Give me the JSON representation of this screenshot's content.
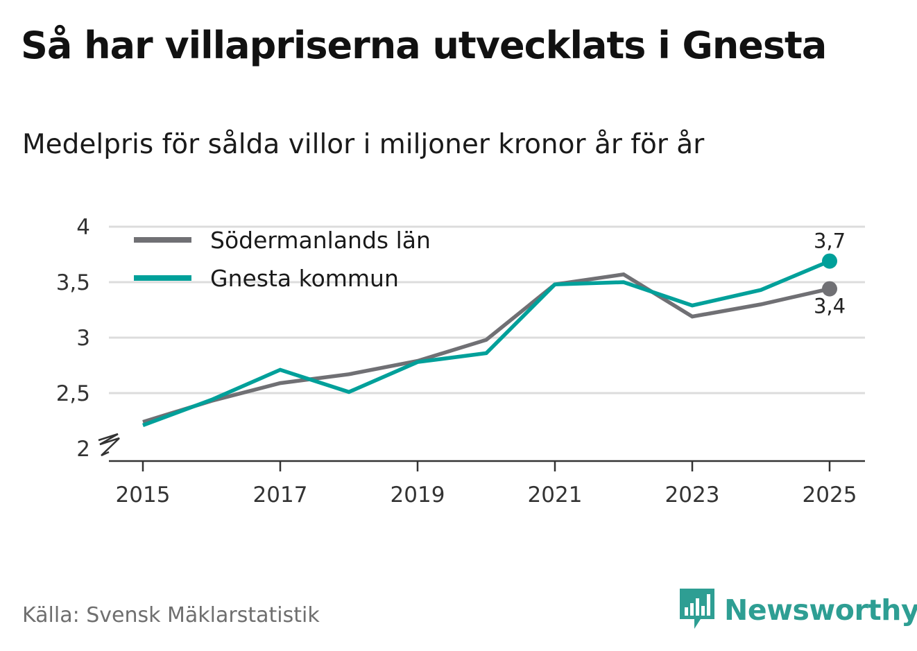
{
  "header": {
    "title": "Så har villapriserna utvecklats i Gnesta",
    "subtitle": "Medelpris för sålda villor i miljoner kronor år för år"
  },
  "footer": {
    "source": "Källa: Svensk Mäklarstatistik",
    "brand": "Newsworthy"
  },
  "icons": {
    "brand_logo": "bar-chart-speech-bubble-icon"
  },
  "colors": {
    "grey_series": "#707074",
    "teal_series": "#00a09a",
    "grid": "#dcdcdc",
    "axis": "#333333",
    "brand": "#2e9e93"
  },
  "chart_data": {
    "type": "line",
    "title": "Så har villapriserna utvecklats i Gnesta",
    "subtitle": "Medelpris för sålda villor i miljoner kronor år för år",
    "xlabel": "",
    "ylabel": "",
    "x": [
      2015,
      2016,
      2017,
      2018,
      2019,
      2020,
      2021,
      2022,
      2023,
      2024,
      2025
    ],
    "xticks": [
      "2015",
      "2017",
      "2019",
      "2021",
      "2023",
      "2025"
    ],
    "yticks": [
      "2",
      "2,5",
      "3",
      "3,5",
      "4"
    ],
    "ylim": [
      2,
      4
    ],
    "y_axis_break": true,
    "grid": true,
    "legend_position": "top-left",
    "series": [
      {
        "name": "Södermanlands län",
        "color": "#707074",
        "values": [
          2.24,
          2.43,
          2.59,
          2.67,
          2.79,
          2.98,
          3.48,
          3.57,
          3.19,
          3.3,
          3.44
        ],
        "end_label": "3,4"
      },
      {
        "name": "Gnesta kommun",
        "color": "#00a09a",
        "values": [
          2.21,
          2.44,
          2.71,
          2.51,
          2.78,
          2.86,
          3.48,
          3.5,
          3.29,
          3.43,
          3.69
        ],
        "end_label": "3,7"
      }
    ]
  }
}
